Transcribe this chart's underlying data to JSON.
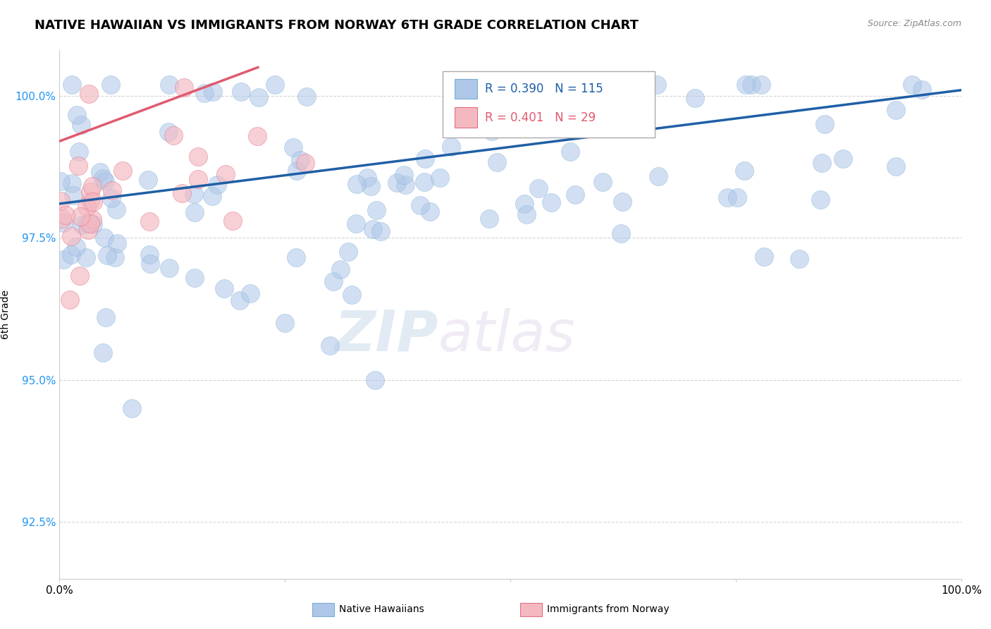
{
  "title": "NATIVE HAWAIIAN VS IMMIGRANTS FROM NORWAY 6TH GRADE CORRELATION CHART",
  "source_text": "Source: ZipAtlas.com",
  "ylabel": "6th Grade",
  "xlim": [
    0.0,
    1.0
  ],
  "ylim": [
    0.915,
    1.008
  ],
  "yticks": [
    0.925,
    0.95,
    0.975,
    1.0
  ],
  "ytick_labels": [
    "92.5%",
    "95.0%",
    "97.5%",
    "100.0%"
  ],
  "xticks": [
    0.0,
    0.25,
    0.5,
    0.75,
    1.0
  ],
  "xtick_labels": [
    "0.0%",
    "",
    "",
    "",
    "100.0%"
  ],
  "blue_R": 0.39,
  "blue_N": 115,
  "pink_R": 0.401,
  "pink_N": 29,
  "blue_color": "#aec6e8",
  "blue_edge_color": "#7bafd4",
  "blue_line_color": "#1f5fa6",
  "pink_color": "#f4b8c1",
  "pink_edge_color": "#e07080",
  "pink_line_color": "#e05a6e",
  "legend_label_blue": "Native Hawaiians",
  "legend_label_pink": "Immigrants from Norway",
  "watermark_zip": "ZIP",
  "watermark_atlas": "atlas",
  "background_color": "#ffffff",
  "grid_color": "#cccccc",
  "blue_trend_x0": 0.0,
  "blue_trend_x1": 1.0,
  "blue_trend_y0": 0.981,
  "blue_trend_y1": 1.001,
  "pink_trend_x0": 0.0,
  "pink_trend_x1": 0.22,
  "pink_trend_y0": 0.992,
  "pink_trend_y1": 1.005
}
